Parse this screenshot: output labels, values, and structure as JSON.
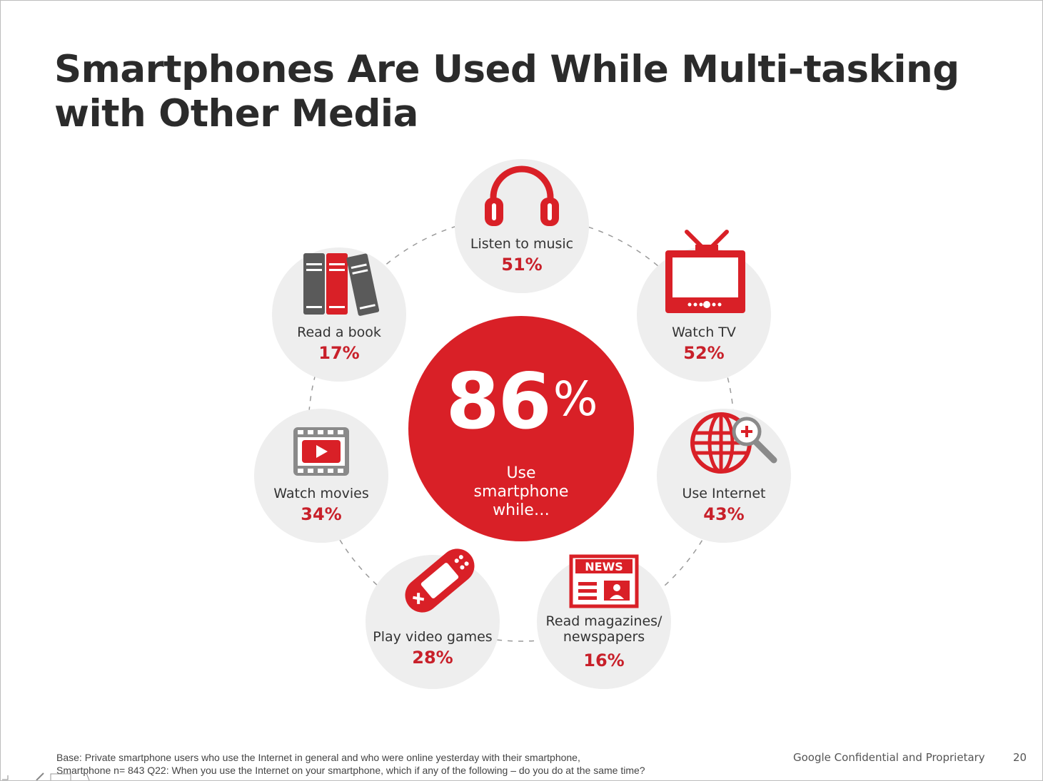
{
  "slide": {
    "title_lines": [
      "Smartphones Are Used While Multi-tasking",
      "with Other Media"
    ],
    "center": {
      "value": "86",
      "unit": "%",
      "caption": "Use\nsmartphone\nwhile…"
    },
    "activities": [
      {
        "label": "Listen to music",
        "percent": "51%",
        "icon": "headphones-icon"
      },
      {
        "label": "Watch TV",
        "percent": "52%",
        "icon": "tv-icon"
      },
      {
        "label": "Use Internet",
        "percent": "43%",
        "icon": "globe-search-icon"
      },
      {
        "label": "Read magazines/\nnewspapers",
        "percent": "16%",
        "icon": "newspaper-icon"
      },
      {
        "label": "Play video games",
        "percent": "28%",
        "icon": "gamepad-icon"
      },
      {
        "label": "Watch movies",
        "percent": "34%",
        "icon": "film-play-icon"
      },
      {
        "label": "Read a book",
        "percent": "17%",
        "icon": "books-icon"
      }
    ],
    "footnote_lines": [
      "Base:   Private smartphone users who use the Internet in general and who were online yesterday with their smartphone,",
      "Smartphone n= 843 Q22: When you use the Internet on your smartphone, which if any of the following – do you do at the same time?"
    ],
    "confidential": "Google Confidential and Proprietary",
    "page_number": "20"
  },
  "colors": {
    "accent_red": "#d92027",
    "percent_red": "#c8202a",
    "bubble_gray": "#eeeeee",
    "icon_gray": "#5a5a5a",
    "title_text": "#2b2b2b"
  }
}
